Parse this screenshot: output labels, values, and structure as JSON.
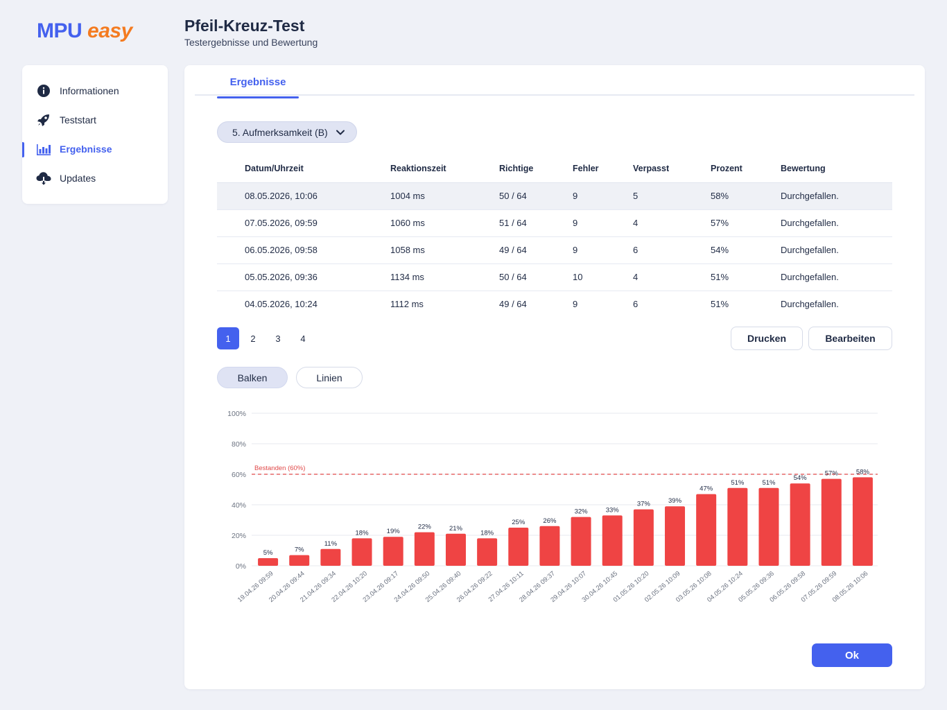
{
  "brand": {
    "name_part1": "MPU",
    "name_part2": "easy"
  },
  "header": {
    "title": "Pfeil-Kreuz-Test",
    "subtitle": "Testergebnisse und Bewertung"
  },
  "sidebar": {
    "items": [
      {
        "label": "Informationen",
        "icon": "info-icon"
      },
      {
        "label": "Teststart",
        "icon": "rocket-icon"
      },
      {
        "label": "Ergebnisse",
        "icon": "bar-chart-icon",
        "active": true
      },
      {
        "label": "Updates",
        "icon": "cloud-download-icon"
      }
    ]
  },
  "tabs": [
    {
      "label": "Ergebnisse",
      "active": true
    }
  ],
  "filter": {
    "selected": "5. Aufmerksamkeit (B)"
  },
  "table": {
    "columns": [
      "Datum/Uhrzeit",
      "Reaktionszeit",
      "Richtige",
      "Fehler",
      "Verpasst",
      "Prozent",
      "Bewertung"
    ],
    "rows": [
      [
        "08.05.2026, 10:06",
        "1004 ms",
        "50 / 64",
        "9",
        "5",
        "58%",
        "Durchgefallen."
      ],
      [
        "07.05.2026, 09:59",
        "1060 ms",
        "51 / 64",
        "9",
        "4",
        "57%",
        "Durchgefallen."
      ],
      [
        "06.05.2026, 09:58",
        "1058 ms",
        "49 / 64",
        "9",
        "6",
        "54%",
        "Durchgefallen."
      ],
      [
        "05.05.2026, 09:36",
        "1134 ms",
        "50 / 64",
        "10",
        "4",
        "51%",
        "Durchgefallen."
      ],
      [
        "04.05.2026, 10:24",
        "1112 ms",
        "49 / 64",
        "9",
        "6",
        "51%",
        "Durchgefallen."
      ]
    ]
  },
  "pagination": {
    "pages": [
      "1",
      "2",
      "3",
      "4"
    ],
    "current": "1"
  },
  "actions": {
    "print_label": "Drucken",
    "edit_label": "Bearbeiten",
    "ok_label": "Ok"
  },
  "chart_toggle": {
    "bars_label": "Balken",
    "lines_label": "Linien",
    "selected": "Balken"
  },
  "colors": {
    "accent": "#4461ee",
    "brand_orange": "#f47b20",
    "bar": "#ef4444",
    "threshold": "#e04848"
  },
  "chart_data": {
    "type": "bar",
    "categories": [
      "19.04.26 09:59",
      "20.04.26 09:44",
      "21.04.26 09:34",
      "22.04.26 10:20",
      "23.04.26 09:17",
      "24.04.26 09:50",
      "25.04.26 09:40",
      "26.04.26 09:22",
      "27.04.26 10:11",
      "28.04.26 09:37",
      "29.04.26 10:07",
      "30.04.26 10:45",
      "01.05.26 10:20",
      "02.05.26 10:09",
      "03.05.26 10:08",
      "04.05.26 10:24",
      "05.05.26 09:36",
      "06.05.26 09:58",
      "07.05.26 09:59",
      "08.05.26 10:06"
    ],
    "values": [
      5,
      7,
      11,
      18,
      19,
      22,
      21,
      18,
      25,
      26,
      32,
      33,
      37,
      39,
      47,
      51,
      51,
      54,
      57,
      58
    ],
    "value_suffix": "%",
    "yticks": [
      "0%",
      "20%",
      "40%",
      "60%",
      "80%",
      "100%"
    ],
    "ylim": [
      0,
      100
    ],
    "threshold": {
      "value": 60,
      "label": "Bestanden (60%)"
    },
    "grid": true
  }
}
